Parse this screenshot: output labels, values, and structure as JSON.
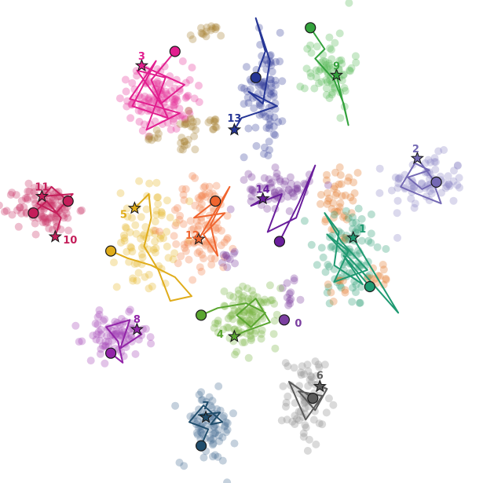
{
  "chart_data": {
    "type": "scatter",
    "title": "",
    "xlabel": "",
    "ylabel": "",
    "axes_visible": false,
    "grid": false,
    "xlim": [
      0,
      100
    ],
    "ylim": [
      0,
      100
    ],
    "description": "2-D embedding of point clusters with overlaid trajectories. Each trajectory starts at a circle marker and ends at a star marker labelled with its index.",
    "point_clusters": [
      {
        "name": "c0",
        "color": "#7b3fa0",
        "x": 59.9,
        "y": 39.2,
        "sx": 0.9,
        "sy": 2.0,
        "n": 12
      },
      {
        "name": "c1a",
        "color": "#e37a2b",
        "x": 71.0,
        "y": 58.0,
        "sx": 2.3,
        "sy": 4.5,
        "n": 45
      },
      {
        "name": "c1b",
        "color": "#2f9e77",
        "x": 72.3,
        "y": 47.5,
        "sx": 3.5,
        "sy": 6.0,
        "n": 90
      },
      {
        "name": "c1c",
        "color": "#e37a2b",
        "x": 79.0,
        "y": 43.0,
        "sx": 1.6,
        "sy": 1.6,
        "n": 12
      },
      {
        "name": "c1d",
        "color": "#e37a2b",
        "x": 70.0,
        "y": 39.5,
        "sx": 1.3,
        "sy": 1.6,
        "n": 8
      },
      {
        "name": "c2",
        "color": "#8f88c7",
        "x": 89.0,
        "y": 62.5,
        "sx": 4.0,
        "sy": 2.8,
        "n": 75
      },
      {
        "name": "c3",
        "color": "#e6399b",
        "x": 33.0,
        "y": 80.0,
        "sx": 3.4,
        "sy": 3.4,
        "n": 120
      },
      {
        "name": "c3b1",
        "color": "#a98436",
        "x": 42.5,
        "y": 94.0,
        "sx": 1.7,
        "sy": 0.8,
        "n": 16
      },
      {
        "name": "c3b2",
        "color": "#a98436",
        "x": 39.0,
        "y": 75.0,
        "sx": 1.1,
        "sy": 1.0,
        "n": 14
      },
      {
        "name": "c3b3",
        "color": "#a98436",
        "x": 44.0,
        "y": 74.5,
        "sx": 0.8,
        "sy": 0.9,
        "n": 10
      },
      {
        "name": "c3b4",
        "color": "#a98436",
        "x": 38.0,
        "y": 70.5,
        "sx": 0.8,
        "sy": 1.0,
        "n": 10
      },
      {
        "name": "c3b5",
        "color": "#a98436",
        "x": 31.0,
        "y": 72.0,
        "sx": 1.0,
        "sy": 0.8,
        "n": 8
      },
      {
        "name": "c4",
        "color": "#78b443",
        "x": 51.5,
        "y": 34.0,
        "sx": 3.1,
        "sy": 3.1,
        "n": 110
      },
      {
        "name": "c5",
        "color": "#e7b82a",
        "x": 30.0,
        "y": 51.0,
        "sx": 3.0,
        "sy": 5.6,
        "n": 80
      },
      {
        "name": "c6",
        "color": "#8c8c8c",
        "x": 63.5,
        "y": 16.5,
        "sx": 2.0,
        "sy": 4.8,
        "n": 70
      },
      {
        "name": "c7",
        "color": "#4a6f94",
        "x": 43.0,
        "y": 11.0,
        "sx": 2.9,
        "sy": 3.9,
        "n": 80
      },
      {
        "name": "c8",
        "color": "#a446b6",
        "x": 23.5,
        "y": 30.0,
        "sx": 3.3,
        "sy": 2.3,
        "n": 80
      },
      {
        "name": "c9",
        "color": "#5bbb5b",
        "x": 68.5,
        "y": 86.5,
        "sx": 2.5,
        "sy": 4.0,
        "n": 70
      },
      {
        "name": "c10_11",
        "color": "#c9376b",
        "x": 9.0,
        "y": 57.0,
        "sx": 3.2,
        "sy": 2.5,
        "n": 110
      },
      {
        "name": "c12",
        "color": "#f4824e",
        "x": 42.0,
        "y": 53.0,
        "sx": 3.8,
        "sy": 5.2,
        "n": 100
      },
      {
        "name": "c12b",
        "color": "#7b3fa0",
        "x": 47.5,
        "y": 46.5,
        "sx": 0.9,
        "sy": 1.0,
        "n": 10
      },
      {
        "name": "c13",
        "color": "#3f49a0",
        "x": 55.0,
        "y": 82.0,
        "sx": 2.2,
        "sy": 6.0,
        "n": 90
      },
      {
        "name": "c14",
        "color": "#7b3fa0",
        "x": 58.0,
        "y": 61.0,
        "sx": 3.2,
        "sy": 2.0,
        "n": 60
      }
    ],
    "trajectories": [
      {
        "id": "0",
        "label": "0",
        "color": "#7b3fa0",
        "start": [
          59.0,
          33.5
        ],
        "end": null,
        "path": []
      },
      {
        "id": "1",
        "label": "1",
        "color": "#1f9a72",
        "start": [
          77.0,
          40.5
        ],
        "end": [
          73.5,
          50.8
        ],
        "path": [
          [
            77.0,
            40.5
          ],
          [
            71.5,
            47.0
          ],
          [
            75.5,
            41.0
          ],
          [
            69.5,
            45.0
          ],
          [
            70.5,
            52.0
          ],
          [
            67.5,
            56.0
          ],
          [
            71.0,
            50.0
          ],
          [
            76.5,
            44.0
          ],
          [
            69.5,
            41.5
          ],
          [
            72.5,
            48.0
          ],
          [
            68.0,
            51.5
          ],
          [
            75.5,
            43.5
          ],
          [
            83.0,
            35.0
          ],
          [
            73.5,
            50.8
          ]
        ]
      },
      {
        "id": "2",
        "label": "2",
        "color": "#7469b4",
        "start": [
          91.0,
          62.5
        ],
        "end": [
          87.0,
          67.5
        ],
        "path": [
          [
            91.0,
            62.5
          ],
          [
            88.0,
            61.0
          ],
          [
            85.0,
            63.5
          ],
          [
            89.5,
            65.0
          ],
          [
            86.5,
            66.5
          ],
          [
            83.5,
            61.5
          ],
          [
            87.0,
            60.0
          ],
          [
            92.0,
            58.0
          ],
          [
            90.0,
            63.5
          ],
          [
            87.0,
            67.5
          ]
        ]
      },
      {
        "id": "3",
        "label": "3",
        "color": "#e21f8f",
        "start": [
          36.0,
          90.0
        ],
        "end": [
          29.0,
          87.0
        ],
        "path": [
          [
            36.0,
            90.0
          ],
          [
            31.0,
            84.0
          ],
          [
            34.5,
            76.0
          ],
          [
            27.0,
            78.5
          ],
          [
            32.0,
            88.0
          ],
          [
            26.5,
            80.0
          ],
          [
            37.0,
            77.0
          ],
          [
            30.0,
            73.5
          ],
          [
            34.0,
            84.5
          ],
          [
            28.0,
            86.0
          ],
          [
            33.0,
            79.0
          ],
          [
            38.0,
            83.0
          ],
          [
            29.0,
            87.0
          ]
        ]
      },
      {
        "id": "4",
        "label": "4",
        "color": "#5aa630",
        "start": [
          41.5,
          34.5
        ],
        "end": [
          48.5,
          30.0
        ],
        "path": [
          [
            41.5,
            34.5
          ],
          [
            45.0,
            36.0
          ],
          [
            51.0,
            37.0
          ],
          [
            55.0,
            35.0
          ],
          [
            52.0,
            32.0
          ],
          [
            49.0,
            34.5
          ],
          [
            53.0,
            38.0
          ],
          [
            56.0,
            33.0
          ],
          [
            50.5,
            31.0
          ],
          [
            48.5,
            30.0
          ]
        ]
      },
      {
        "id": "5",
        "label": "5",
        "color": "#e0ac1a",
        "start": [
          22.5,
          48.0
        ],
        "end": [
          27.5,
          57.0
        ],
        "path": [
          [
            22.5,
            48.0
          ],
          [
            26.0,
            46.5
          ],
          [
            31.0,
            45.0
          ],
          [
            36.0,
            42.5
          ],
          [
            39.5,
            38.5
          ],
          [
            35.0,
            37.5
          ],
          [
            32.5,
            44.0
          ],
          [
            29.5,
            49.0
          ],
          [
            31.0,
            55.0
          ],
          [
            30.5,
            60.0
          ],
          [
            27.5,
            57.0
          ]
        ]
      },
      {
        "id": "6",
        "label": "6",
        "color": "#5a5a5a",
        "start": [
          65.0,
          17.0
        ],
        "end": [
          66.5,
          19.5
        ],
        "path": [
          [
            65.0,
            17.0
          ],
          [
            60.0,
            20.5
          ],
          [
            63.5,
            12.5
          ],
          [
            67.0,
            17.5
          ],
          [
            62.0,
            18.5
          ],
          [
            65.5,
            14.5
          ],
          [
            68.0,
            19.0
          ],
          [
            66.5,
            19.5
          ]
        ]
      },
      {
        "id": "7",
        "label": "7",
        "color": "#214e6d",
        "start": [
          41.5,
          7.0
        ],
        "end": [
          42.5,
          13.0
        ],
        "path": [
          [
            41.5,
            7.0
          ],
          [
            43.0,
            10.5
          ],
          [
            39.0,
            12.0
          ],
          [
            42.0,
            15.5
          ],
          [
            46.0,
            12.0
          ],
          [
            43.5,
            11.5
          ],
          [
            45.5,
            14.0
          ],
          [
            41.0,
            13.5
          ],
          [
            42.5,
            13.0
          ]
        ]
      },
      {
        "id": "8",
        "label": "8",
        "color": "#9224a8",
        "start": [
          22.5,
          26.5
        ],
        "end": [
          28.0,
          31.5
        ],
        "path": [
          [
            22.5,
            26.5
          ],
          [
            25.0,
            24.5
          ],
          [
            24.0,
            29.0
          ],
          [
            21.5,
            32.0
          ],
          [
            26.5,
            33.5
          ],
          [
            24.5,
            27.5
          ],
          [
            29.0,
            30.5
          ],
          [
            28.0,
            31.5
          ]
        ]
      },
      {
        "id": "9",
        "label": "9",
        "color": "#33a23c",
        "start": [
          64.5,
          95.0
        ],
        "end": [
          70.0,
          85.0
        ],
        "path": [
          [
            64.5,
            95.0
          ],
          [
            67.5,
            90.5
          ],
          [
            65.5,
            88.5
          ],
          [
            69.5,
            84.0
          ],
          [
            71.5,
            79.0
          ],
          [
            72.5,
            74.5
          ],
          [
            70.0,
            85.0
          ]
        ]
      },
      {
        "id": "10",
        "label": "10",
        "color": "#c41e5a",
        "start": [
          6.2,
          56.0
        ],
        "end": [
          10.8,
          51.0
        ],
        "path": [
          [
            6.2,
            56.0
          ],
          [
            9.0,
            58.5
          ],
          [
            12.0,
            55.0
          ],
          [
            10.8,
            51.0
          ]
        ]
      },
      {
        "id": "11",
        "label": "11",
        "color": "#c41e5a",
        "start": [
          13.5,
          58.5
        ],
        "end": [
          8.0,
          59.5
        ],
        "path": [
          [
            13.5,
            58.5
          ],
          [
            10.0,
            61.5
          ],
          [
            7.0,
            58.0
          ],
          [
            11.0,
            56.0
          ],
          [
            14.5,
            60.0
          ],
          [
            8.0,
            59.5
          ]
        ]
      },
      {
        "id": "12",
        "label": "12",
        "color": "#f0652f",
        "start": [
          44.5,
          58.5
        ],
        "end": [
          41.0,
          50.5
        ],
        "path": [
          [
            44.5,
            58.5
          ],
          [
            40.0,
            55.0
          ],
          [
            46.5,
            56.0
          ],
          [
            42.0,
            51.5
          ],
          [
            45.0,
            47.0
          ],
          [
            43.5,
            53.5
          ],
          [
            47.5,
            61.5
          ],
          [
            41.0,
            50.5
          ]
        ]
      },
      {
        "id": "13",
        "label": "13",
        "color": "#263696",
        "start": [
          53.0,
          84.5
        ],
        "end": [
          48.5,
          73.5
        ],
        "path": [
          [
            53.0,
            84.5
          ],
          [
            55.0,
            90.0
          ],
          [
            53.0,
            97.0
          ],
          [
            56.0,
            88.0
          ],
          [
            54.5,
            79.0
          ],
          [
            51.5,
            81.5
          ],
          [
            57.5,
            78.5
          ],
          [
            50.0,
            76.0
          ],
          [
            48.5,
            73.5
          ]
        ]
      },
      {
        "id": "14",
        "label": "14",
        "color": "#6a1e9c",
        "start": [
          58.0,
          50.0
        ],
        "end": [
          54.5,
          59.0
        ],
        "path": [
          [
            58.0,
            50.0
          ],
          [
            62.0,
            58.0
          ],
          [
            65.5,
            66.0
          ],
          [
            61.5,
            55.0
          ],
          [
            55.5,
            52.0
          ],
          [
            58.5,
            60.0
          ],
          [
            52.0,
            57.5
          ],
          [
            54.5,
            59.0
          ]
        ]
      }
    ],
    "annotations": [
      {
        "text": "0",
        "target": "0",
        "color": "#7b3fa0"
      },
      {
        "text": "1",
        "target": "1",
        "color": "#1f9a72"
      },
      {
        "text": "2",
        "target": "2",
        "color": "#7469b4"
      },
      {
        "text": "3",
        "target": "3",
        "color": "#e21f8f"
      },
      {
        "text": "4",
        "target": "4",
        "color": "#5aa630"
      },
      {
        "text": "5",
        "target": "5",
        "color": "#e0ac1a"
      },
      {
        "text": "6",
        "target": "6",
        "color": "#5a5a5a"
      },
      {
        "text": "7",
        "target": "7",
        "color": "#214e6d"
      },
      {
        "text": "8",
        "target": "8",
        "color": "#9224a8"
      },
      {
        "text": "9",
        "target": "9",
        "color": "#33a23c"
      },
      {
        "text": "10",
        "target": "10",
        "color": "#c41e5a"
      },
      {
        "text": "11",
        "target": "11",
        "color": "#c41e5a"
      },
      {
        "text": "12",
        "target": "12",
        "color": "#f0652f"
      },
      {
        "text": "13",
        "target": "13",
        "color": "#263696"
      },
      {
        "text": "14",
        "target": "14",
        "color": "#6a1e9c"
      }
    ]
  }
}
